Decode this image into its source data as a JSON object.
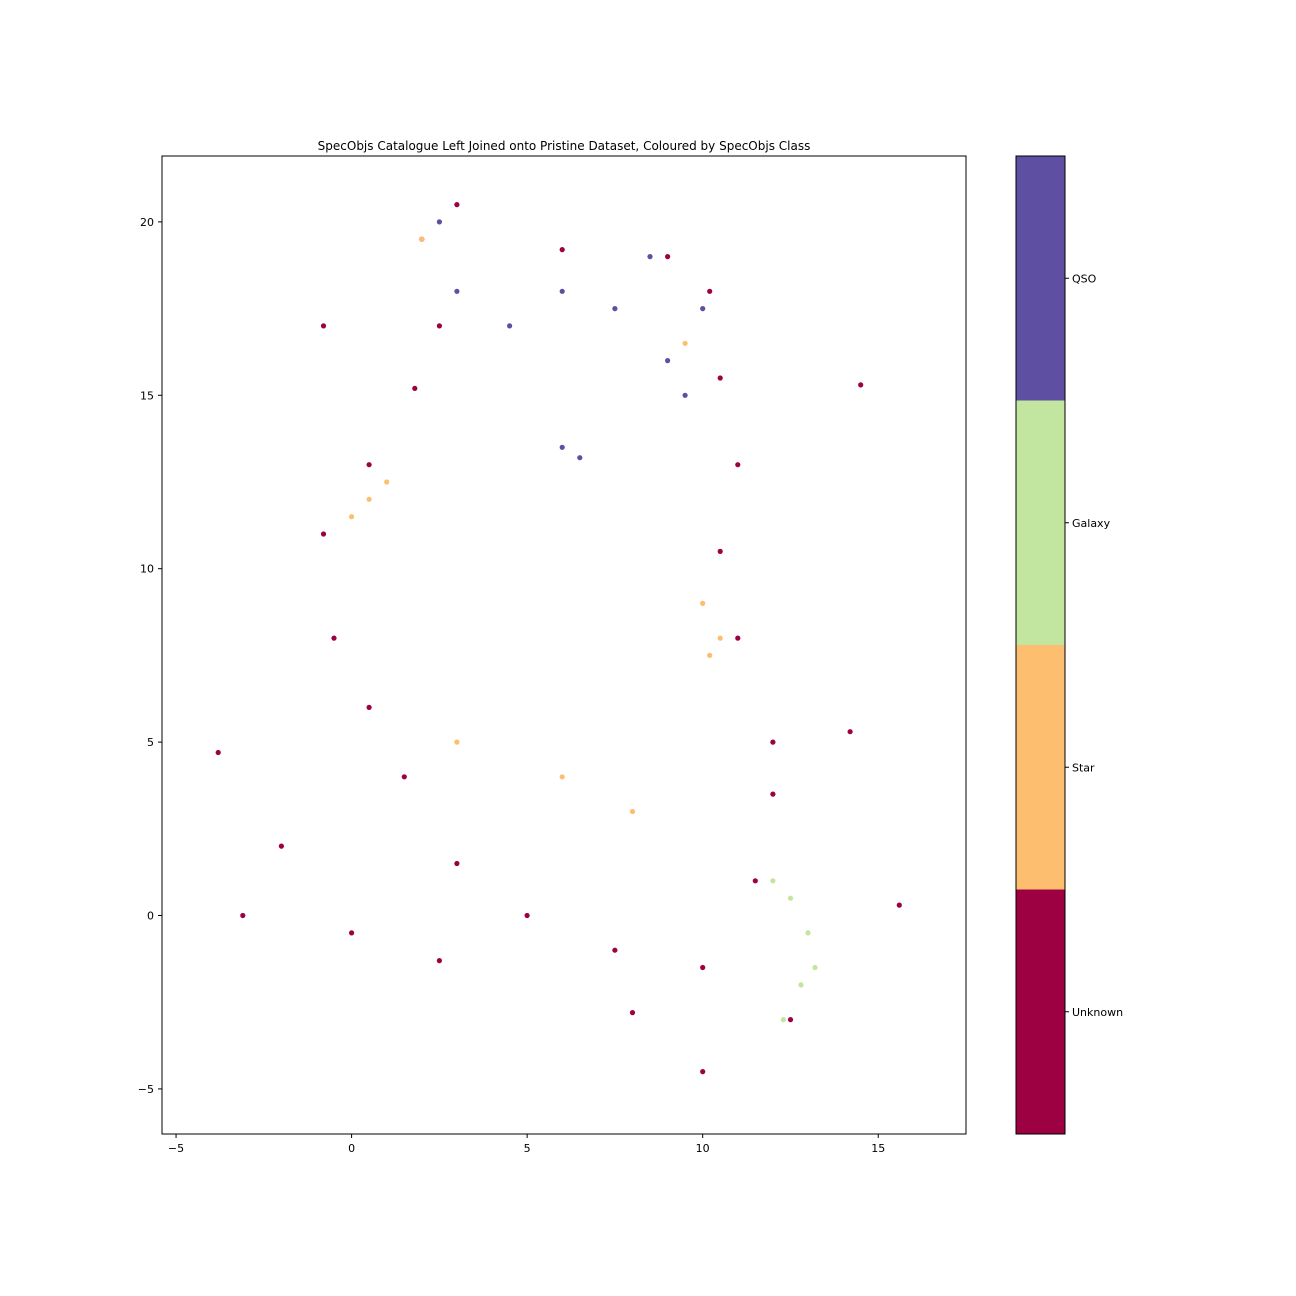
{
  "chart_data": {
    "type": "scatter",
    "title": "SpecObjs Catalogue Left Joined onto Pristine Dataset, Coloured by SpecObjs Class",
    "xlabel": "",
    "ylabel": "",
    "xlim": [
      -5.4,
      17.5
    ],
    "ylim": [
      -6.3,
      21.9
    ],
    "x_ticks": [
      -5,
      0,
      5,
      10,
      15
    ],
    "x_tick_labels": [
      "−5",
      "0",
      "5",
      "10",
      "15"
    ],
    "y_ticks": [
      -5,
      0,
      5,
      10,
      15,
      20
    ],
    "y_tick_labels": [
      "−5",
      "0",
      "5",
      "10",
      "15",
      "20"
    ],
    "grid": false,
    "colorbar": {
      "placement": "right",
      "classes": [
        {
          "label": "Unknown",
          "color": "#9e0142"
        },
        {
          "label": "Star",
          "color": "#fdbe6f"
        },
        {
          "label": "Galaxy",
          "color": "#c2e59f"
        },
        {
          "label": "QSO",
          "color": "#5e4fa2"
        }
      ]
    },
    "series": [
      {
        "name": "Unknown",
        "color": "#9e0142",
        "description_points": [
          [
            -0.8,
            11.0
          ],
          [
            -0.5,
            8.0
          ],
          [
            0.5,
            6.0
          ],
          [
            1.5,
            4.0
          ],
          [
            3.0,
            1.5
          ],
          [
            5.0,
            0.0
          ],
          [
            7.5,
            -1.0
          ],
          [
            10.0,
            -1.5
          ],
          [
            11.5,
            1.0
          ],
          [
            12.0,
            3.5
          ],
          [
            12.0,
            5.0
          ],
          [
            11.0,
            8.0
          ],
          [
            10.5,
            10.5
          ],
          [
            11.0,
            13.0
          ],
          [
            10.5,
            15.5
          ],
          [
            10.2,
            18.0
          ],
          [
            9.0,
            19.0
          ],
          [
            6.0,
            19.2
          ],
          [
            3.0,
            20.5
          ],
          [
            2.0,
            19.5
          ],
          [
            2.5,
            17.0
          ],
          [
            1.8,
            15.2
          ],
          [
            0.5,
            13.0
          ],
          [
            -3.8,
            4.7
          ],
          [
            -2.0,
            2.0
          ],
          [
            0.0,
            -0.5
          ],
          [
            2.5,
            -1.3
          ],
          [
            8.0,
            -2.8
          ],
          [
            10.0,
            -4.5
          ],
          [
            12.5,
            -3.0
          ],
          [
            14.2,
            5.3
          ],
          [
            14.5,
            15.3
          ],
          [
            -0.8,
            17.0
          ],
          [
            -3.1,
            0.0
          ],
          [
            15.6,
            0.3
          ]
        ]
      },
      {
        "name": "Star",
        "color": "#fdbe6f",
        "description_points": [
          [
            0.5,
            12.0
          ],
          [
            0.0,
            11.5
          ],
          [
            1.0,
            12.5
          ],
          [
            10.0,
            9.0
          ],
          [
            10.5,
            8.0
          ],
          [
            10.2,
            7.5
          ],
          [
            2.0,
            19.5
          ],
          [
            9.5,
            16.5
          ],
          [
            3.0,
            5.0
          ],
          [
            6.0,
            4.0
          ],
          [
            8.0,
            3.0
          ]
        ]
      },
      {
        "name": "Galaxy",
        "color": "#c2e59f",
        "description_points": [
          [
            12.5,
            0.5
          ],
          [
            13.0,
            -0.5
          ],
          [
            12.8,
            -2.0
          ],
          [
            12.3,
            -3.0
          ],
          [
            12.0,
            1.0
          ],
          [
            13.2,
            -1.5
          ]
        ]
      },
      {
        "name": "QSO",
        "color": "#5e4fa2",
        "description_points": [
          [
            2.5,
            20.0
          ],
          [
            3.0,
            18.0
          ],
          [
            4.5,
            17.0
          ],
          [
            6.0,
            18.0
          ],
          [
            7.5,
            17.5
          ],
          [
            9.0,
            16.0
          ],
          [
            6.0,
            13.5
          ],
          [
            6.5,
            13.2
          ],
          [
            9.5,
            15.0
          ],
          [
            10.0,
            17.5
          ],
          [
            8.5,
            19.0
          ]
        ]
      }
    ]
  }
}
